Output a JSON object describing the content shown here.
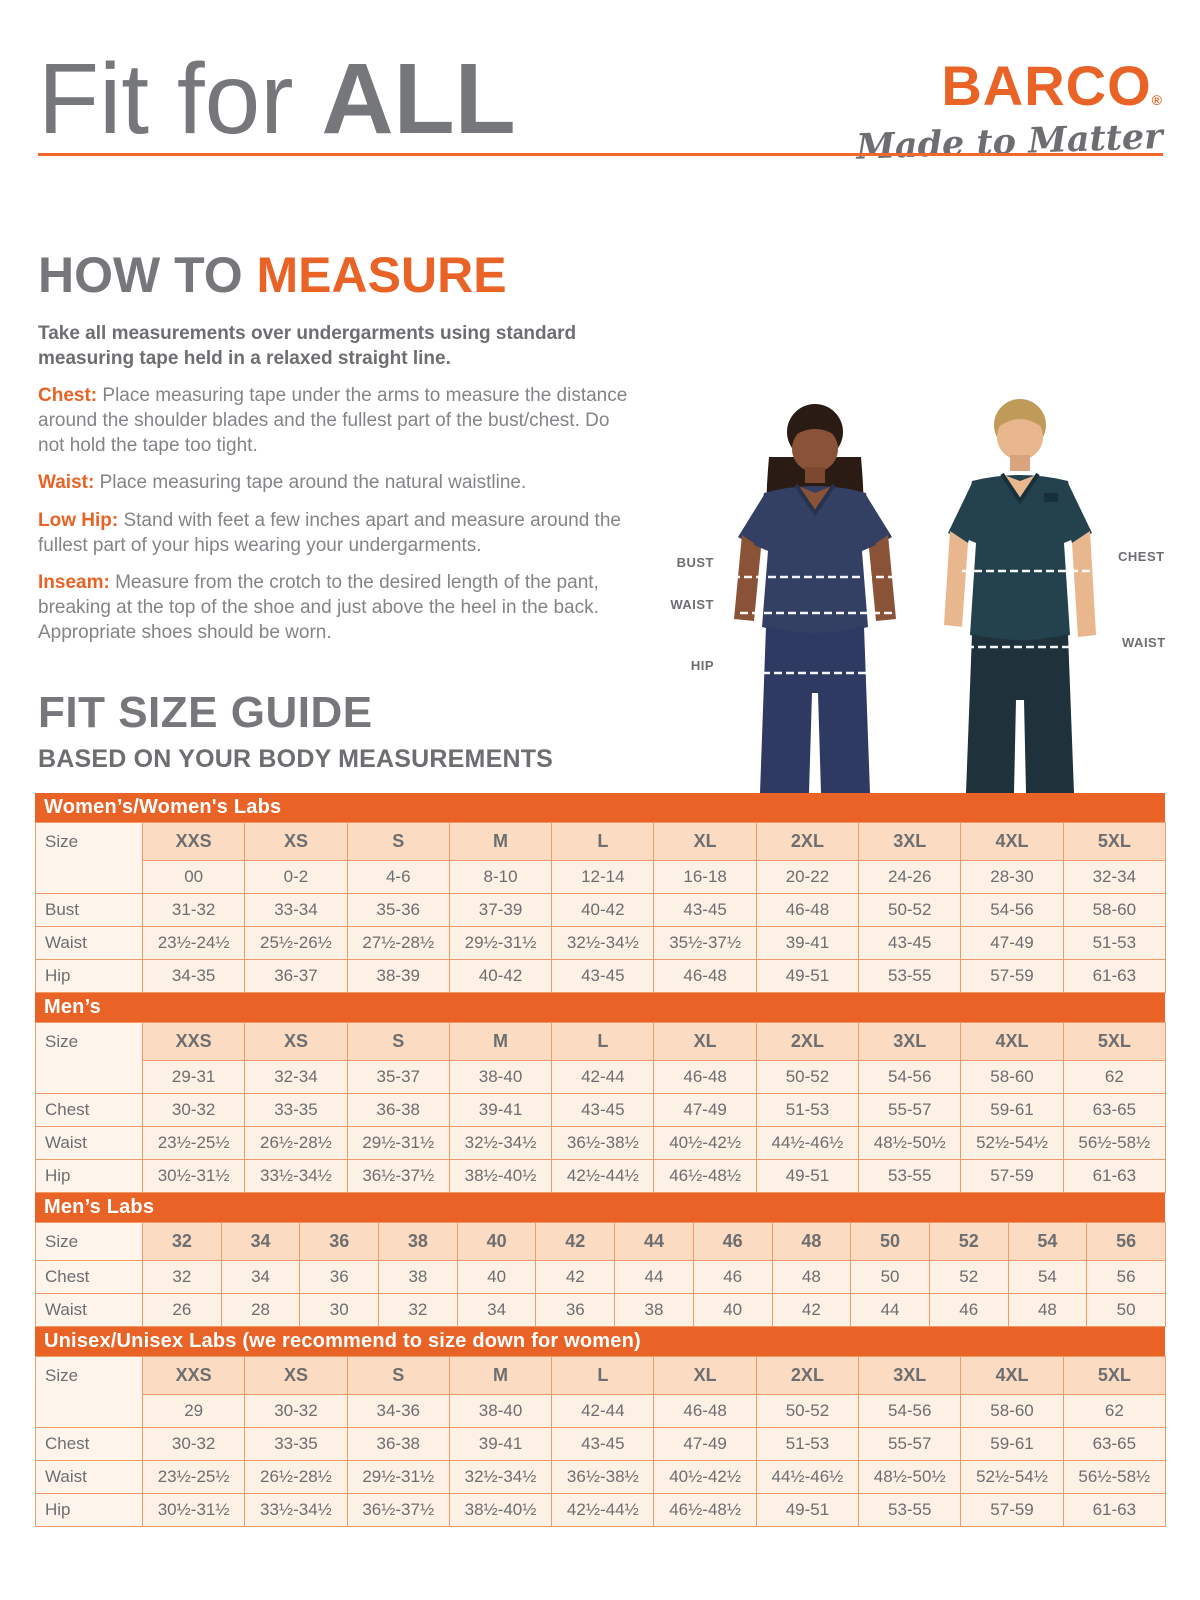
{
  "header": {
    "title_regular": "Fit for ",
    "title_bold": "ALL",
    "brand": "BARCO",
    "brand_reg": "®",
    "tagline": "Made to Matter"
  },
  "how_to_measure": {
    "heading_gray": "HOW TO ",
    "heading_accent": "MEASURE",
    "intro": "Take all measurements over undergarments using standard measuring tape held in a relaxed straight line.",
    "items": [
      {
        "label": "Chest:",
        "text": " Place measuring tape under the arms to measure the distance around the shoulder blades and the fullest part of the bust/chest. Do not hold the tape too tight."
      },
      {
        "label": "Waist:",
        "text": " Place measuring tape around the natural waistline."
      },
      {
        "label": "Low Hip:",
        "text": " Stand with feet a few inches apart and measure around the fullest part of your hips wearing your undergarments."
      },
      {
        "label": "Inseam:",
        "text": " Measure from the crotch to the desired length of the pant, breaking at the top of the shoe and just above the heel in the back. Appropriate shoes should be worn."
      }
    ]
  },
  "figure_labels": {
    "woman": [
      "BUST",
      "WAIST",
      "HIP"
    ],
    "man": [
      "CHEST",
      "WAIST"
    ]
  },
  "fit_size_guide": {
    "title": "FIT SIZE GUIDE",
    "subtitle": "BASED ON YOUR BODY MEASUREMENTS",
    "tables": [
      {
        "id": "womens",
        "title": "Women’s/Women's Labs",
        "rows": [
          {
            "kind": "size-header",
            "label": "Size",
            "cells": [
              "XXS",
              "XS",
              "S",
              "M",
              "L",
              "XL",
              "2XL",
              "3XL",
              "4XL",
              "5XL"
            ]
          },
          {
            "kind": "numeric",
            "cells": [
              "00",
              "0-2",
              "4-6",
              "8-10",
              "12-14",
              "16-18",
              "20-22",
              "24-26",
              "28-30",
              "32-34"
            ]
          },
          {
            "kind": "data",
            "label": "Bust",
            "cells": [
              "31-32",
              "33-34",
              "35-36",
              "37-39",
              "40-42",
              "43-45",
              "46-48",
              "50-52",
              "54-56",
              "58-60"
            ]
          },
          {
            "kind": "data",
            "label": "Waist",
            "cells": [
              "23½-24½",
              "25½-26½",
              "27½-28½",
              "29½-31½",
              "32½-34½",
              "35½-37½",
              "39-41",
              "43-45",
              "47-49",
              "51-53"
            ]
          },
          {
            "kind": "data",
            "label": "Hip",
            "cells": [
              "34-35",
              "36-37",
              "38-39",
              "40-42",
              "43-45",
              "46-48",
              "49-51",
              "53-55",
              "57-59",
              "61-63"
            ]
          }
        ]
      },
      {
        "id": "mens",
        "title": "Men’s",
        "rows": [
          {
            "kind": "size-header",
            "label": "Size",
            "cells": [
              "XXS",
              "XS",
              "S",
              "M",
              "L",
              "XL",
              "2XL",
              "3XL",
              "4XL",
              "5XL"
            ]
          },
          {
            "kind": "numeric",
            "cells": [
              "29-31",
              "32-34",
              "35-37",
              "38-40",
              "42-44",
              "46-48",
              "50-52",
              "54-56",
              "58-60",
              "62"
            ]
          },
          {
            "kind": "data",
            "label": "Chest",
            "cells": [
              "30-32",
              "33-35",
              "36-38",
              "39-41",
              "43-45",
              "47-49",
              "51-53",
              "55-57",
              "59-61",
              "63-65"
            ]
          },
          {
            "kind": "data",
            "label": "Waist",
            "cells": [
              "23½-25½",
              "26½-28½",
              "29½-31½",
              "32½-34½",
              "36½-38½",
              "40½-42½",
              "44½-46½",
              "48½-50½",
              "52½-54½",
              "56½-58½"
            ]
          },
          {
            "kind": "data",
            "label": "Hip",
            "cells": [
              "30½-31½",
              "33½-34½",
              "36½-37½",
              "38½-40½",
              "42½-44½",
              "46½-48½",
              "49-51",
              "53-55",
              "57-59",
              "61-63"
            ]
          }
        ]
      },
      {
        "id": "mens-labs",
        "title": "Men’s Labs",
        "rows": [
          {
            "kind": "size-header",
            "label": "Size",
            "cells": [
              "32",
              "34",
              "36",
              "38",
              "40",
              "42",
              "44",
              "46",
              "48",
              "50",
              "52",
              "54",
              "56"
            ]
          },
          {
            "kind": "data",
            "label": "Chest",
            "cells": [
              "32",
              "34",
              "36",
              "38",
              "40",
              "42",
              "44",
              "46",
              "48",
              "50",
              "52",
              "54",
              "56"
            ]
          },
          {
            "kind": "data",
            "label": "Waist",
            "cells": [
              "26",
              "28",
              "30",
              "32",
              "34",
              "36",
              "38",
              "40",
              "42",
              "44",
              "46",
              "48",
              "50"
            ]
          }
        ]
      },
      {
        "id": "unisex",
        "title": "Unisex/Unisex Labs (we recommend to size down for women)",
        "rows": [
          {
            "kind": "size-header",
            "label": "Size",
            "cells": [
              "XXS",
              "XS",
              "S",
              "M",
              "L",
              "XL",
              "2XL",
              "3XL",
              "4XL",
              "5XL"
            ]
          },
          {
            "kind": "numeric",
            "cells": [
              "29",
              "30-32",
              "34-36",
              "38-40",
              "42-44",
              "46-48",
              "50-52",
              "54-56",
              "58-60",
              "62"
            ]
          },
          {
            "kind": "data",
            "label": "Chest",
            "cells": [
              "30-32",
              "33-35",
              "36-38",
              "39-41",
              "43-45",
              "47-49",
              "51-53",
              "55-57",
              "59-61",
              "63-65"
            ]
          },
          {
            "kind": "data",
            "label": "Waist",
            "cells": [
              "23½-25½",
              "26½-28½",
              "29½-31½",
              "32½-34½",
              "36½-38½",
              "40½-42½",
              "44½-46½",
              "48½-50½",
              "52½-54½",
              "56½-58½"
            ]
          },
          {
            "kind": "data",
            "label": "Hip",
            "cells": [
              "30½-31½",
              "33½-34½",
              "36½-37½",
              "38½-40½",
              "42½-44½",
              "46½-48½",
              "49-51",
              "53-55",
              "57-59",
              "61-63"
            ]
          }
        ]
      }
    ]
  },
  "colors": {
    "accent_orange": "#E96226",
    "divider_orange": "#F2672C",
    "table_border": "#F09A68",
    "size_header_peach": "#FBDBC1",
    "row_cream": "#FDF0E4",
    "label_col_cream": "#FDF4EB",
    "heading_gray": "#76777B",
    "body_gray": "#828487",
    "band_text": "#FFFFFF"
  }
}
